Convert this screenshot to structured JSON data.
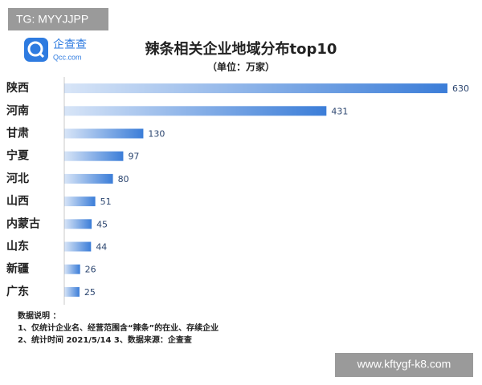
{
  "watermark_top": "TG: MYYJJPP",
  "watermark_bottom": "www.kftygf-k8.com",
  "logo": {
    "name": "企查查",
    "site": "Qcc.com"
  },
  "chart_data": {
    "type": "bar",
    "orientation": "horizontal",
    "title": "辣条相关企业地域分布top10",
    "subtitle": "（单位：万家）",
    "categories": [
      "陕西",
      "河南",
      "甘肃",
      "宁夏",
      "河北",
      "山西",
      "内蒙古",
      "山东",
      "新疆",
      "广东"
    ],
    "values": [
      630,
      431,
      130,
      97,
      80,
      51,
      45,
      44,
      26,
      25
    ],
    "color": "#3b7dd8",
    "xlim": [
      0,
      630
    ],
    "notes": [
      "数据说明 ：",
      "1、仅统计企业名、经营范围含“辣条”的在业、存续企业",
      "2、统计时间  2021/5/14     3、数据来源：企查查"
    ]
  }
}
